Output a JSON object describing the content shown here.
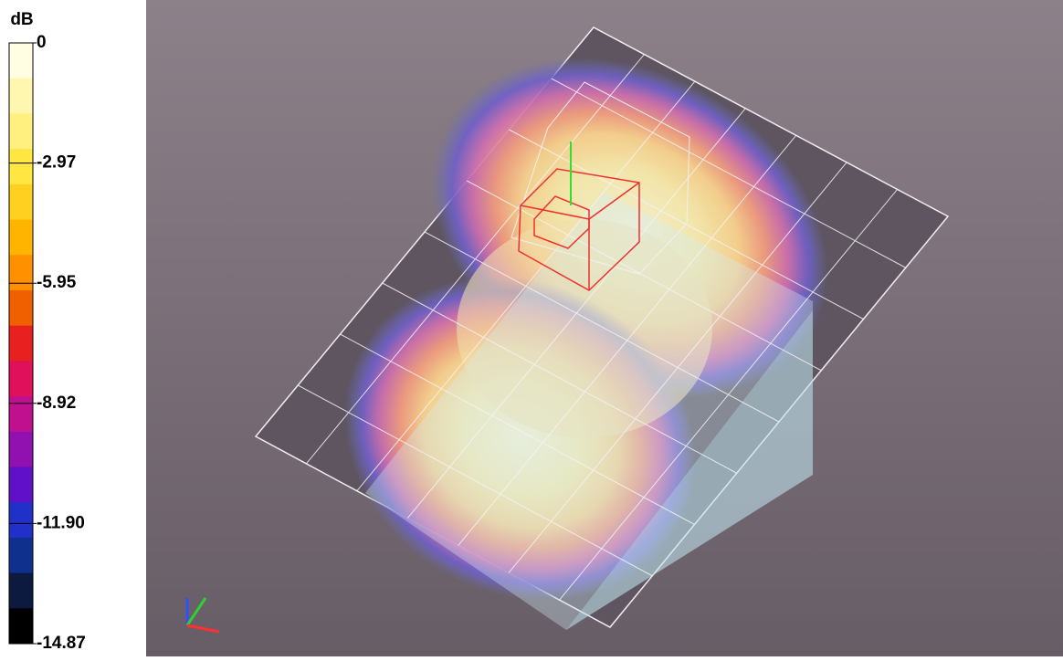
{
  "colorbar": {
    "unit": "dB",
    "ticks": [
      "0",
      "-2.97",
      "-5.95",
      "-8.92",
      "-11.90",
      "-14.87"
    ]
  }
}
